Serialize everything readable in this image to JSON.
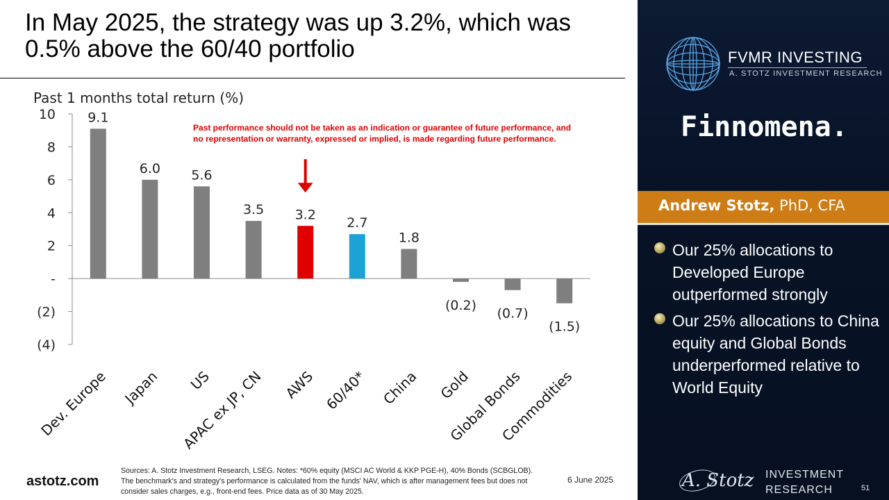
{
  "title": "In May 2025, the strategy was up 3.2%, which was 0.5% above the 60/40 portfolio",
  "chart_data": {
    "type": "bar",
    "subtitle": "Past 1 months total return (%)",
    "categories": [
      "Dev. Europe",
      "Japan",
      "US",
      "APAC ex JP, CN",
      "AWS",
      "60/40*",
      "China",
      "Gold",
      "Global Bonds",
      "Commodities"
    ],
    "values": [
      9.1,
      6.0,
      5.6,
      3.5,
      3.2,
      2.7,
      1.8,
      -0.2,
      -0.7,
      -1.5
    ],
    "data_labels": [
      "9.1",
      "6.0",
      "5.6",
      "3.5",
      "3.2",
      "2.7",
      "1.8",
      "(0.2)",
      "(0.7)",
      "(1.5)"
    ],
    "bar_colors": [
      "#7f7f7f",
      "#7f7f7f",
      "#7f7f7f",
      "#7f7f7f",
      "#e00000",
      "#1ca3d6",
      "#7f7f7f",
      "#7f7f7f",
      "#7f7f7f",
      "#7f7f7f"
    ],
    "ylim": [
      -4,
      10
    ],
    "yticks": [
      10,
      8,
      6,
      4,
      2,
      0,
      -2,
      -4
    ],
    "ytick_labels": [
      "10",
      "8",
      "6",
      "4",
      "2",
      "-",
      "(2)",
      "(4)"
    ],
    "highlight_arrow_category": "AWS",
    "arrow_color": "#e00000",
    "disclaimer": [
      "Past performance should not be taken as an indication or guarantee of future performance, and",
      "no representation or warranty, expressed or implied, is made regarding future performance."
    ],
    "grid": false,
    "legend": "none"
  },
  "sources": "Sources: A. Stotz Investment Research, LSEG. Notes: *60% equity (MSCI AC World & KKP PGE-H), 40% Bonds (SCBGLOB). The benchmark's and strategy's performance is calculated from the funds' NAV, which is after management fees but does not consider sales charges, e.g., front-end fees. Price data as of 30 May 2025.",
  "website": "astotz.com",
  "date": "6 June 2025",
  "side": {
    "brand_name": "FVMR INVESTING",
    "brand_tagline": "A. STOTZ INVESTMENT RESEARCH",
    "partner": "Finnomena.",
    "presenter_name": "Andrew Stotz,",
    "presenter_credentials": " PhD, CFA",
    "band_color": "#cd7c16",
    "bullets": [
      "Our 25% allocations to Developed Europe outperformed strongly",
      "Our 25% allocations to China equity and Global Bonds underperformed relative to World Equity"
    ],
    "footer_signature": "A. Stotz",
    "footer_line1": "INVESTMENT",
    "footer_line2": "RESEARCH",
    "page_number": "51"
  }
}
